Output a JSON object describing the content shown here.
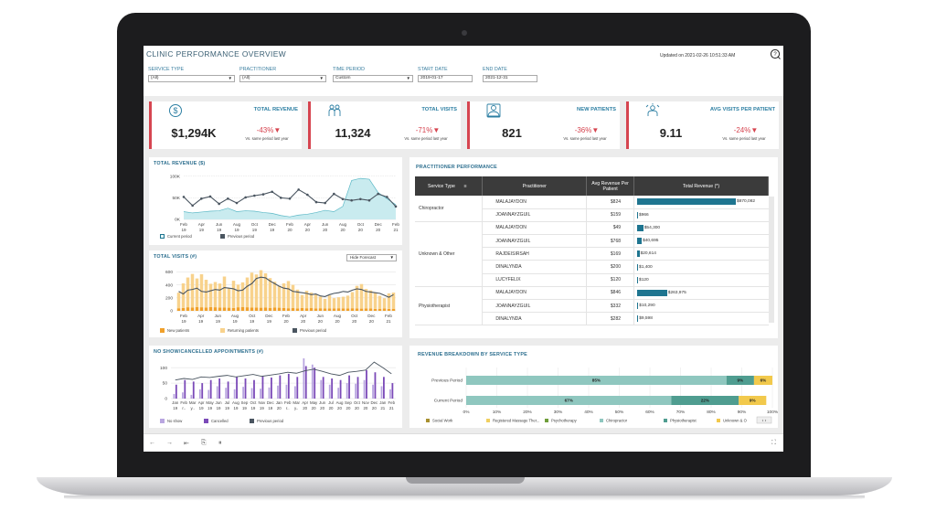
{
  "dashboard": {
    "title": "CLINIC PERFORMANCE OVERVIEW",
    "updated": "Updated on 2021-02-26 10:51:33 AM",
    "filters": [
      {
        "label": "SERVICE TYPE",
        "value": "(All)"
      },
      {
        "label": "PRACTITIONER",
        "value": "(All)"
      },
      {
        "label": "TIME PERIOD",
        "value": "Custom"
      },
      {
        "label": "START DATE",
        "value": "2019-01-17"
      },
      {
        "label": "END DATE",
        "value": "2021-12-31"
      }
    ]
  },
  "kpis": [
    {
      "label": "TOTAL REVENUE",
      "value": "$1,294K",
      "change": "-43%",
      "sub": "Vs. same period last year",
      "icon": "dollar-icon"
    },
    {
      "label": "TOTAL VISITS",
      "value": "11,324",
      "change": "-71%",
      "sub": "Vs. same period last year",
      "icon": "people-icon"
    },
    {
      "label": "NEW PATIENTS",
      "value": "821",
      "change": "-36%",
      "sub": "Vs. same period last year",
      "icon": "new-patient-icon"
    },
    {
      "label": "AVG VISITS PER PATIENT",
      "value": "9.11",
      "change": "-24%",
      "sub": "Vs. same period last year",
      "icon": "visits-icon"
    }
  ],
  "revenue_chart": {
    "title": "TOTAL REVENUE ($)",
    "legend": {
      "current": "Current period",
      "previous": "Previous period"
    }
  },
  "visits_chart": {
    "title": "TOTAL VISITS (#)",
    "forecast_option": "Hide Forecast",
    "legend": {
      "new": "New patients",
      "returning": "Returning patients",
      "previous": "Previous period"
    }
  },
  "noshow_chart": {
    "title": "NO SHOW/CANCELLED APPOINTMENTS (#)",
    "legend": {
      "noshow": "No show",
      "cancelled": "Cancelled",
      "previous": "Previous period"
    }
  },
  "practitioner_table": {
    "title": "PRACTITIONER PERFORMANCE",
    "headers": [
      "Service Type",
      "Practitioner",
      "Avg Revenue Per Patient",
      "Total Revenue (*)"
    ],
    "groups": [
      {
        "service": "Chiropractor",
        "rows": [
          {
            "name": "MALAJAYDON",
            "avg": "$824",
            "total": "$870,082",
            "amount": 870082
          },
          {
            "name": "JOANNAYZGUIL",
            "avg": "$159",
            "total": "$966",
            "amount": 966
          }
        ]
      },
      {
        "service": "Unknown & Other",
        "rows": [
          {
            "name": "MALAJAYDON",
            "avg": "$49",
            "total": "$54,300",
            "amount": 54300
          },
          {
            "name": "JOANNAYZGUIL",
            "avg": "$768",
            "total": "$40,695",
            "amount": 40695
          },
          {
            "name": "RAJDEISIRSAH",
            "avg": "$169",
            "total": "$20,614",
            "amount": 20614
          },
          {
            "name": "DINALYNDA",
            "avg": "$200",
            "total": "$1,400",
            "amount": 1400
          },
          {
            "name": "LUCYFELIX",
            "avg": "$120",
            "total": "$120",
            "amount": 120
          }
        ]
      },
      {
        "service": "Physiotherapist",
        "rows": [
          {
            "name": "MALAJAYDON",
            "avg": "$846",
            "total": "$263,975",
            "amount": 263975
          },
          {
            "name": "JOANNAYZGUIL",
            "avg": "$332",
            "total": "$10,290",
            "amount": 10290
          },
          {
            "name": "DINALYNDA",
            "avg": "$282",
            "total": "$9,598",
            "amount": 9598
          }
        ]
      }
    ]
  },
  "breakdown_chart": {
    "title": "REVENUE BREAKDOWN BY SERVICE TYPE",
    "legend": [
      "Social Work",
      "Registered Massage Ther...",
      "Psychotherapy",
      "Chiropractor",
      "Physiotherapist",
      "Unknown & O"
    ]
  },
  "colors": {
    "accent": "#2d7fa3",
    "negative": "#d64550",
    "revenue_current": "#8fd0d8",
    "revenue_previous": "#4a5560",
    "visits_new": "#f0a02a",
    "visits_returning": "#f8d28c",
    "noshow": "#b9a6e0",
    "cancelled": "#7b4ab8",
    "bar": "#1f7590"
  },
  "chart_data": [
    {
      "type": "area",
      "title": "TOTAL REVENUE ($)",
      "x": [
        "Feb 19",
        "Mar 19",
        "Apr 19",
        "May 19",
        "Jun 19",
        "Jul 19",
        "Aug 19",
        "Sep 19",
        "Oct 19",
        "Nov 19",
        "Dec 19",
        "Jan 20",
        "Feb 20",
        "Mar 20",
        "Apr 20",
        "May 20",
        "Jun 20",
        "Jul 20",
        "Aug 20",
        "Sep 20",
        "Oct 20",
        "Nov 20",
        "Dec 20",
        "Jan 21",
        "Feb 21"
      ],
      "x_ticks": [
        "Feb 19",
        "Apr 19",
        "Jun 19",
        "Aug 19",
        "Oct 19",
        "Dec 19",
        "Feb 20",
        "Apr 20",
        "Jun 20",
        "Aug 20",
        "Oct 20",
        "Dec 20",
        "Feb 21"
      ],
      "y_ticks": [
        "0K",
        "50K",
        "100K"
      ],
      "ylim": [
        0,
        110000
      ],
      "series": [
        {
          "name": "Current period",
          "values": [
            18000,
            15000,
            17000,
            19000,
            20000,
            26000,
            18000,
            20000,
            19000,
            16000,
            14000,
            9000,
            6000,
            10000,
            12000,
            16000,
            21000,
            18000,
            30000,
            90000,
            95000,
            93000,
            62000,
            48000,
            34000
          ]
        },
        {
          "name": "Previous period",
          "values": [
            52000,
            32000,
            48000,
            53000,
            36000,
            48000,
            38000,
            51000,
            55000,
            58000,
            64000,
            50000,
            48000,
            69000,
            57000,
            40000,
            38000,
            59000,
            47000,
            44000,
            47000,
            44000,
            59000,
            52000,
            30000
          ]
        }
      ]
    },
    {
      "type": "bar",
      "title": "TOTAL VISITS (#)",
      "x_ticks": [
        "Feb 19",
        "Apr 19",
        "Jun 19",
        "Aug 19",
        "Oct 19",
        "Dec 19",
        "Feb 20",
        "Apr 20",
        "Jun 20",
        "Aug 20",
        "Oct 20",
        "Dec 20",
        "Feb 21"
      ],
      "y_ticks": [
        "0",
        "200",
        "400",
        "600"
      ],
      "ylim": [
        0,
        650
      ],
      "series": [
        {
          "name": "New patients",
          "values": [
            40,
            45,
            55,
            50,
            60,
            55,
            50,
            58,
            55,
            52,
            50,
            48,
            45,
            55,
            60,
            55,
            50,
            52,
            48,
            50,
            46,
            50,
            48,
            45,
            40,
            42,
            38,
            45,
            40,
            42,
            38,
            40,
            35,
            38,
            36,
            40,
            38,
            35,
            40,
            36,
            34,
            38,
            35,
            30,
            32,
            35,
            30,
            32
          ]
        },
        {
          "name": "Returning patients",
          "values": [
            240,
            380,
            460,
            520,
            440,
            510,
            430,
            360,
            390,
            370,
            480,
            300,
            420,
            350,
            380,
            460,
            540,
            510,
            580,
            530,
            460,
            400,
            340,
            380,
            420,
            360,
            290,
            200,
            270,
            240,
            220,
            180,
            150,
            200,
            160,
            170,
            180,
            200,
            250,
            350,
            380,
            300,
            280,
            250,
            200,
            160,
            240,
            250
          ]
        },
        {
          "name": "Previous period",
          "values": [
            300,
            260,
            320,
            330,
            350,
            300,
            290,
            310,
            330,
            320,
            360,
            350,
            340,
            310,
            320,
            380,
            420,
            500,
            520,
            510,
            460,
            420,
            380,
            350,
            340,
            300,
            290,
            280,
            270,
            250,
            260,
            230,
            220,
            250,
            270,
            280,
            300,
            290,
            320,
            340,
            330,
            300,
            290,
            280,
            270,
            240,
            210,
            250
          ]
        }
      ]
    },
    {
      "type": "bar",
      "title": "NO SHOW/CANCELLED APPOINTMENTS (#)",
      "x_ticks": [
        "Jan 19",
        "Feb 19",
        "Mar 19",
        "Apr 19",
        "May 19",
        "Jun 19",
        "Jul 19",
        "Aug 19",
        "Sep 19",
        "Oct 19",
        "Nov 19",
        "Dec 19",
        "Jan 20",
        "Feb 20",
        "Mar 20",
        "Apr 20",
        "May 20",
        "Jun 20",
        "Jul 20",
        "Aug 20",
        "Sep 20",
        "Oct 20",
        "Nov 20",
        "Dec 20",
        "Jan 21",
        "Feb 21"
      ],
      "x_tick_years": [
        "19",
        "r..",
        "y..",
        "19",
        "19",
        "19",
        "19",
        "19",
        "19",
        "19",
        "19",
        "19",
        "20",
        "r..",
        "y..",
        "20",
        "20",
        "20",
        "20",
        "20",
        "20",
        "20",
        "20",
        "20",
        "21",
        "21"
      ],
      "y_ticks": [
        "0",
        "50",
        "100"
      ],
      "ylim": [
        0,
        130
      ],
      "series": [
        {
          "name": "No show",
          "values": [
            15,
            20,
            12,
            30,
            28,
            40,
            35,
            30,
            38,
            34,
            32,
            36,
            42,
            45,
            40,
            130,
            110,
            60,
            45,
            35,
            50,
            48,
            60,
            45,
            40,
            30
          ]
        },
        {
          "name": "Cancelled",
          "values": [
            45,
            60,
            55,
            50,
            60,
            65,
            55,
            70,
            65,
            60,
            72,
            68,
            75,
            80,
            70,
            105,
            100,
            70,
            65,
            60,
            75,
            70,
            92,
            85,
            70,
            50
          ]
        },
        {
          "name": "Previous period",
          "values": [
            60,
            65,
            62,
            70,
            68,
            72,
            75,
            70,
            74,
            78,
            72,
            76,
            80,
            85,
            82,
            90,
            95,
            88,
            80,
            75,
            85,
            88,
            92,
            118,
            100,
            80
          ]
        }
      ]
    },
    {
      "type": "bar",
      "title": "REVENUE BREAKDOWN BY SERVICE TYPE",
      "categories": [
        "Previous Period",
        "Current Period"
      ],
      "x_ticks": [
        "0%",
        "10%",
        "20%",
        "30%",
        "40%",
        "50%",
        "60%",
        "70%",
        "80%",
        "90%",
        "100%"
      ],
      "xlim": [
        0,
        100
      ],
      "series": [
        {
          "name": "Social Work",
          "values": [
            0,
            0
          ]
        },
        {
          "name": "Registered Massage Ther...",
          "values": [
            0,
            0
          ]
        },
        {
          "name": "Psychotherapy",
          "values": [
            0,
            0
          ]
        },
        {
          "name": "Chiropractor",
          "values": [
            85,
            67
          ]
        },
        {
          "name": "Physiotherapist",
          "values": [
            9,
            22
          ]
        },
        {
          "name": "Unknown & O",
          "values": [
            6,
            9
          ]
        }
      ],
      "data_labels": [
        [
          "85%",
          "9%",
          "6%"
        ],
        [
          "67%",
          "22%",
          "9%"
        ]
      ]
    }
  ]
}
